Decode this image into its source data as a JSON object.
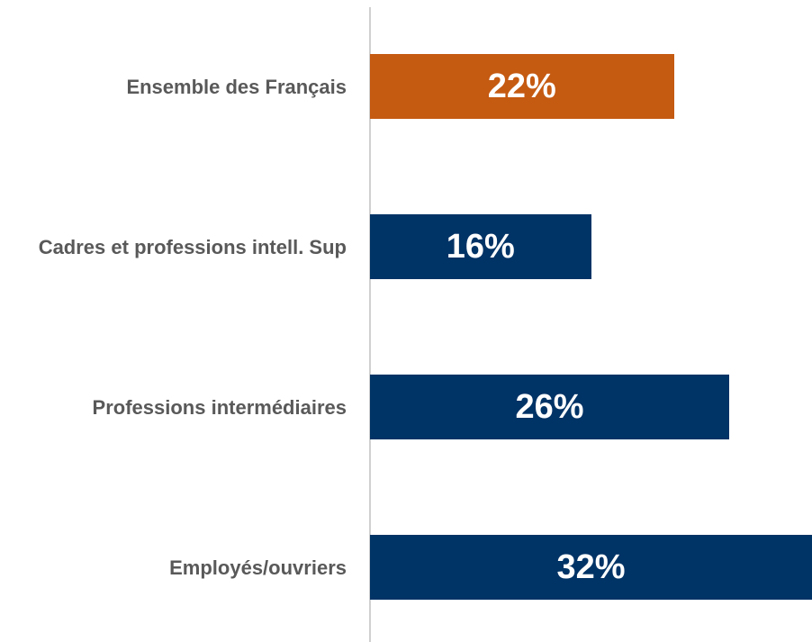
{
  "chart_data": {
    "type": "bar",
    "orientation": "horizontal",
    "categories": [
      "Ensemble des Français",
      "Cadres et professions intell. Sup",
      "Professions intermédiaires",
      "Employés/ouvriers"
    ],
    "values": [
      22,
      16,
      26,
      32
    ],
    "value_labels": [
      "22%",
      "16%",
      "26%",
      "32%"
    ],
    "colors": [
      "#c55a11",
      "#003366",
      "#003366",
      "#003366"
    ]
  }
}
